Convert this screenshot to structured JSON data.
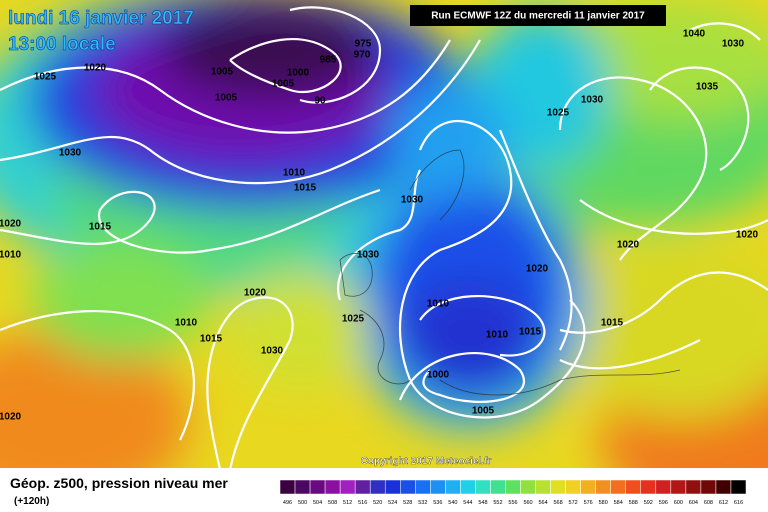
{
  "header": {
    "date_line": "lundi 16 janvier 2017",
    "time_line": "13:00 locale",
    "run_info": "Run ECMWF 12Z du mercredi 11 janvier 2017"
  },
  "isobar_labels": [
    "1025",
    "1020",
    "1005",
    "1005",
    "1005",
    "1000",
    "985",
    "975",
    "970",
    "90",
    "1030",
    "1010",
    "1015",
    "1015",
    "1020",
    "1010",
    "1030",
    "1030",
    "1020",
    "1025",
    "1010",
    "1015",
    "1030",
    "1020",
    "1010",
    "1010",
    "1015",
    "1020",
    "1000",
    "1005",
    "1030",
    "1025",
    "1035",
    "1040",
    "1030",
    "1020",
    "1020",
    "1015"
  ],
  "footer": {
    "title": "Géop. z500, pression niveau mer",
    "lead_time": "(+120h)",
    "copyright": "Copyright 2017 Meteociel.fr"
  },
  "colorbar": {
    "labels": [
      496,
      500,
      504,
      508,
      512,
      516,
      520,
      524,
      528,
      532,
      536,
      540,
      544,
      548,
      552,
      556,
      560,
      564,
      568,
      572,
      576,
      580,
      584,
      588,
      592,
      596,
      600,
      604,
      608,
      612,
      616
    ],
    "colors": [
      "#3a0040",
      "#4a0860",
      "#6a0a80",
      "#8a10a0",
      "#a020c0",
      "#6020a0",
      "#3030c0",
      "#1a30d8",
      "#1a50e8",
      "#1a70f0",
      "#2090f0",
      "#20b0f0",
      "#20d0e8",
      "#30e0c0",
      "#40e090",
      "#60e060",
      "#90e040",
      "#b8e030",
      "#e0e020",
      "#f0d020",
      "#f0b020",
      "#f09020",
      "#f07020",
      "#f05020",
      "#e83020",
      "#d02020",
      "#b01818",
      "#901010",
      "#700808",
      "#400000",
      "#000000"
    ]
  }
}
